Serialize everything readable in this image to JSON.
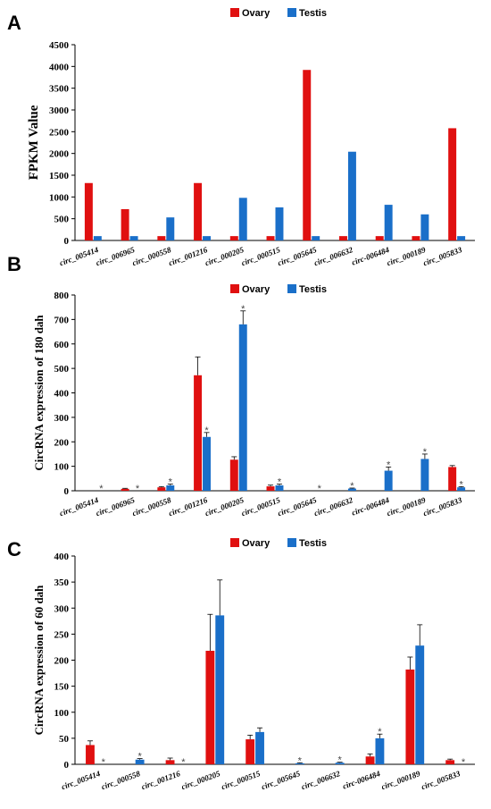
{
  "colors": {
    "ovary": "#e01010",
    "testis": "#1a6fc9"
  },
  "chart_data": [
    {
      "panel": "A",
      "type": "bar",
      "title": "",
      "xlabel": "",
      "ylabel": "FPKM Value",
      "ylim": [
        0,
        4500
      ],
      "yticks": [
        0,
        500,
        1000,
        1500,
        2000,
        2500,
        3000,
        3500,
        4000,
        4500
      ],
      "legend": "top",
      "categories": [
        "circ_005414",
        "circ_006965",
        "circ_000558",
        "circ_001216",
        "circ_000205",
        "circ_000515",
        "circ_005645",
        "circ_006632",
        "circ-006484",
        "circ_000189",
        "circ_005833"
      ],
      "series": [
        {
          "name": "Ovary",
          "values": [
            1320,
            720,
            100,
            1320,
            100,
            100,
            3920,
            100,
            100,
            100,
            2580
          ]
        },
        {
          "name": "Testis",
          "values": [
            100,
            100,
            530,
            100,
            980,
            760,
            100,
            2040,
            820,
            600,
            100
          ]
        }
      ]
    },
    {
      "panel": "B",
      "type": "bar",
      "title": "",
      "xlabel": "",
      "ylabel": "CircRNA expression of 180 dah",
      "ylim": [
        0,
        800
      ],
      "yticks": [
        0,
        100,
        200,
        300,
        400,
        500,
        600,
        700,
        800
      ],
      "legend": "top",
      "categories": [
        "circ_005414",
        "circ_006965",
        "circ_000558",
        "circ_001216",
        "circ_000205",
        "circ_000515",
        "circ_005645",
        "circ_006632",
        "circ-006484",
        "circ_000189",
        "circ_005833"
      ],
      "series": [
        {
          "name": "Ovary",
          "values": [
            0,
            8,
            14,
            472,
            127,
            18,
            0,
            0,
            0,
            0,
            97
          ],
          "errors": [
            0,
            2,
            3,
            75,
            12,
            5,
            0,
            0,
            0,
            0,
            6
          ]
        },
        {
          "name": "Testis",
          "values": [
            0,
            0,
            22,
            220,
            680,
            22,
            0,
            9,
            82,
            130,
            14
          ],
          "errors": [
            0,
            0,
            5,
            18,
            55,
            5,
            0,
            2,
            15,
            20,
            3
          ]
        }
      ],
      "significance": [
        {
          "category": "circ_005414",
          "series": "Testis",
          "mark": "*"
        },
        {
          "category": "circ_006965",
          "series": "Testis",
          "mark": "*"
        },
        {
          "category": "circ_000558",
          "series": "Testis",
          "mark": "*"
        },
        {
          "category": "circ_001216",
          "series": "Testis",
          "mark": "*"
        },
        {
          "category": "circ_000205",
          "series": "Testis",
          "mark": "*"
        },
        {
          "category": "circ_000515",
          "series": "Testis",
          "mark": "*"
        },
        {
          "category": "circ_005645",
          "series": "Testis",
          "mark": "*"
        },
        {
          "category": "circ_006632",
          "series": "Testis",
          "mark": "*"
        },
        {
          "category": "circ-006484",
          "series": "Testis",
          "mark": "*"
        },
        {
          "category": "circ_000189",
          "series": "Testis",
          "mark": "*"
        },
        {
          "category": "circ_005833",
          "series": "Testis",
          "mark": "*"
        }
      ]
    },
    {
      "panel": "C",
      "type": "bar",
      "title": "",
      "xlabel": "",
      "ylabel": "CircRNA expression of 60 dah",
      "ylim": [
        0,
        400
      ],
      "yticks": [
        0,
        50,
        100,
        150,
        200,
        250,
        300,
        350,
        400
      ],
      "legend": "top",
      "categories": [
        "circ_005414",
        "circ_000558",
        "circ_001216",
        "circ_000205",
        "circ_000515",
        "circ_005645",
        "circ_006632",
        "circ-006484",
        "circ_000189",
        "circ_005833"
      ],
      "series": [
        {
          "name": "Ovary",
          "values": [
            37,
            0,
            8,
            218,
            48,
            0,
            0,
            15,
            182,
            8
          ],
          "errors": [
            8,
            0,
            4,
            70,
            8,
            0,
            0,
            5,
            24,
            2
          ]
        },
        {
          "name": "Testis",
          "values": [
            0,
            9,
            0,
            286,
            62,
            2,
            3,
            50,
            228,
            0
          ],
          "errors": [
            0,
            2,
            0,
            68,
            8,
            1,
            1,
            8,
            40,
            0
          ]
        }
      ],
      "significance": [
        {
          "category": "circ_005414",
          "series": "Testis",
          "mark": "*"
        },
        {
          "category": "circ_000558",
          "series": "Testis",
          "mark": "*"
        },
        {
          "category": "circ_001216",
          "series": "Testis",
          "mark": "*"
        },
        {
          "category": "circ_005645",
          "series": "Testis",
          "mark": "*"
        },
        {
          "category": "circ_006632",
          "series": "Testis",
          "mark": "*"
        },
        {
          "category": "circ-006484",
          "series": "Testis",
          "mark": "*"
        },
        {
          "category": "circ_005833",
          "series": "Testis",
          "mark": "*"
        }
      ]
    }
  ]
}
